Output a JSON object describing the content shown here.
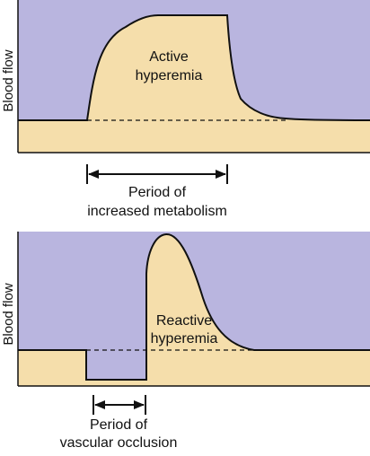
{
  "colors": {
    "background": "#b9b5df",
    "flow_fill": "#f5deab",
    "line": "#111111",
    "page": "#ffffff"
  },
  "top_panel": {
    "y_axis_label": "Blood flow",
    "curve_label_line1": "Active",
    "curve_label_line2": "hyperemia",
    "period_label_line1": "Period of",
    "period_label_line2": "increased metabolism"
  },
  "bottom_panel": {
    "y_axis_label": "Blood flow",
    "curve_label_line1": "Reactive",
    "curve_label_line2": "hyperemia",
    "period_label_line1": "Period of",
    "period_label_line2": "vascular occlusion"
  }
}
